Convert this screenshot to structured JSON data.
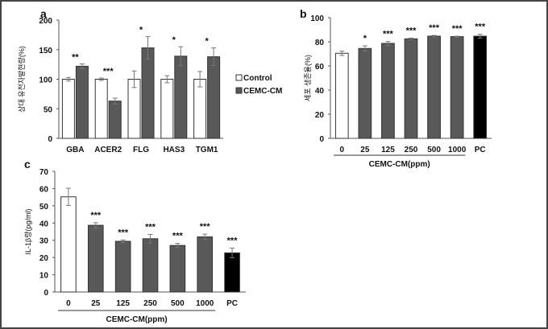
{
  "chart_data": [
    {
      "panel": "a",
      "type": "bar",
      "ylabel": "상대 유전자발현량(%)",
      "ylim": [
        0,
        200
      ],
      "yticks": [
        0,
        50,
        100,
        150,
        200
      ],
      "categories": [
        "GBA",
        "ACER2",
        "FLG",
        "HAS3",
        "TGM1"
      ],
      "series": [
        {
          "name": "Control",
          "color": "#ffffff",
          "values": [
            100,
            100,
            100,
            100,
            100
          ],
          "errors": [
            3,
            2,
            14,
            6,
            13
          ]
        },
        {
          "name": "CEMC-CM",
          "color": "#595959",
          "values": [
            122,
            63,
            153,
            139,
            138
          ],
          "errors": [
            4,
            5,
            19,
            16,
            15
          ]
        }
      ],
      "significance": [
        "**",
        "***",
        "*",
        "*",
        "*"
      ],
      "legend": "right"
    },
    {
      "panel": "b",
      "type": "bar",
      "ylabel": "세포 생존율(%)",
      "xlabel": "CEMC-CM(ppm)",
      "ylim": [
        0,
        100
      ],
      "yticks": [
        0,
        20,
        40,
        60,
        80,
        100
      ],
      "categories": [
        "0",
        "25",
        "125",
        "250",
        "500",
        "1000",
        "PC"
      ],
      "values": [
        70.5,
        74.5,
        78.7,
        82.5,
        84.7,
        84.3,
        84.7
      ],
      "errors": [
        1.8,
        2.2,
        1.5,
        0.6,
        0.6,
        0.4,
        1.6
      ],
      "colors": [
        "#ffffff",
        "#595959",
        "#595959",
        "#595959",
        "#595959",
        "#595959",
        "#000000"
      ],
      "significance": [
        "",
        "*",
        "***",
        "***",
        "***",
        "***",
        "***"
      ]
    },
    {
      "panel": "c",
      "type": "bar",
      "ylabel": "IL-1β량(pg/ml)",
      "xlabel": "CEMC-CM(ppm)",
      "ylim": [
        0,
        70
      ],
      "yticks": [
        0,
        10,
        20,
        30,
        40,
        50,
        60,
        70
      ],
      "categories": [
        "0",
        "25",
        "125",
        "250",
        "500",
        "1000",
        "PC"
      ],
      "values": [
        55.2,
        38.7,
        29.4,
        30.9,
        27.0,
        32.0,
        22.7
      ],
      "errors": [
        5,
        1.5,
        0.8,
        2.5,
        1.2,
        1.5,
        2.8
      ],
      "colors": [
        "#ffffff",
        "#595959",
        "#595959",
        "#595959",
        "#595959",
        "#595959",
        "#000000"
      ],
      "significance": [
        "",
        "***",
        "***",
        "***",
        "***",
        "***",
        "***"
      ]
    }
  ]
}
